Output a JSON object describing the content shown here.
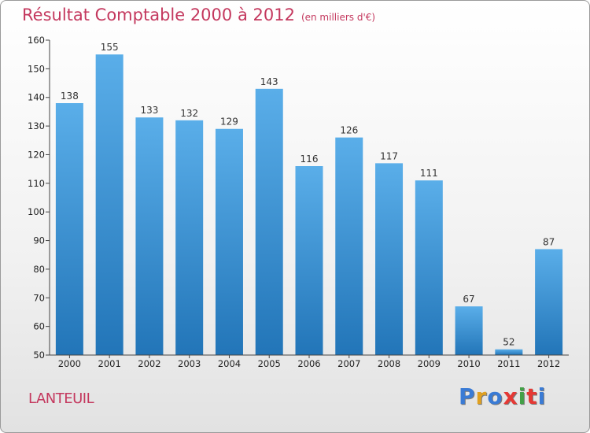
{
  "title": "Résultat Comptable 2000 à 2012",
  "unit_note": "(en milliers d'€)",
  "commune": "LANTEUIL",
  "logo": {
    "text": "Proxiti",
    "colors": [
      "#3a7bd5",
      "#e0a020",
      "#3a7bd5",
      "#e53935",
      "#43a047",
      "#e53935",
      "#3a7bd5"
    ]
  },
  "colors": {
    "title": "#c4385e",
    "bar_top": "#5aaee9",
    "bar_bottom": "#2275b8"
  },
  "chart_data": {
    "type": "bar",
    "title": "Résultat Comptable 2000 à 2012",
    "subtitle": "(en milliers d'€)",
    "xlabel": "",
    "ylabel": "",
    "categories": [
      "2000",
      "2001",
      "2002",
      "2003",
      "2004",
      "2005",
      "2006",
      "2007",
      "2008",
      "2009",
      "2010",
      "2011",
      "2012"
    ],
    "values": [
      138,
      155,
      133,
      132,
      129,
      143,
      116,
      126,
      117,
      111,
      67,
      52,
      87
    ],
    "ylim": [
      50,
      160
    ],
    "yticks": [
      50,
      60,
      70,
      80,
      90,
      100,
      110,
      120,
      130,
      140,
      150,
      160
    ],
    "grid": false
  }
}
